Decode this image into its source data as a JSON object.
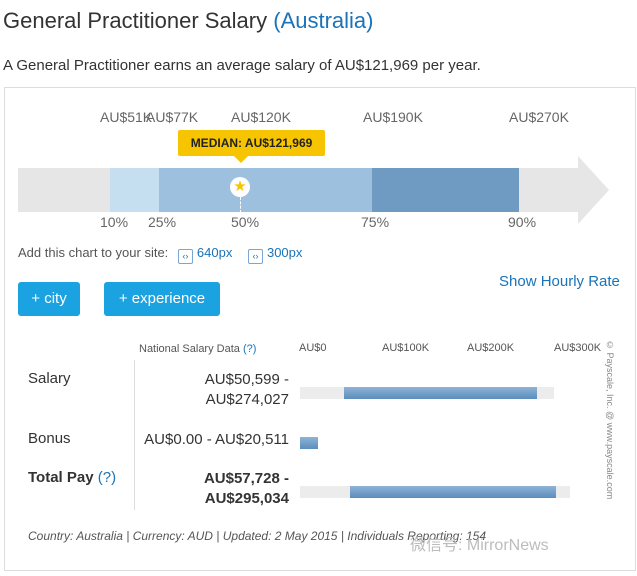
{
  "header": {
    "title": "General Practitioner Salary",
    "country": "(Australia)",
    "summary": "A General Practitioner earns an average salary of AU$121,969 per year."
  },
  "distribution": {
    "top_labels": {
      "p10": "AU$51K",
      "p25": "AU$77K",
      "p50": "AU$120K",
      "p75": "AU$190K",
      "p90": "AU$270K"
    },
    "bottom_labels": {
      "p10": "10%",
      "p25": "25%",
      "p50": "50%",
      "p75": "75%",
      "p90": "90%"
    },
    "median_badge": "MEDIAN: AU$121,969",
    "colors": {
      "track": "#e6e6e6",
      "band_10_25": "#c6dff0",
      "band_25_75": "#9dc0de",
      "band_75_90": "#6f9bc2",
      "median": "#f7c500"
    }
  },
  "embed": {
    "label": "Add this chart to your site:",
    "link_640": "640px",
    "link_300": "300px"
  },
  "filters": {
    "city_button": "+ city",
    "experience_button": "+ experience",
    "hourly_link": "Show Hourly Rate"
  },
  "table": {
    "header": "National Salary Data",
    "help": "(?)",
    "axis": [
      "AU$0",
      "AU$100K",
      "AU$200K",
      "AU$300K"
    ],
    "rows": {
      "salary": {
        "label": "Salary",
        "line1": "AU$50,599 -",
        "line2": "AU$274,027",
        "low": 50599,
        "high": 274027
      },
      "bonus": {
        "label": "Bonus",
        "line1": "AU$0.00 - AU$20,511",
        "low": 0,
        "high": 20511
      },
      "total": {
        "label": "Total Pay",
        "help": "(?)",
        "line1": "AU$57,728 -",
        "line2": "AU$295,034",
        "low": 57728,
        "high": 295034
      }
    }
  },
  "footer": "Country: Australia  |  Currency: AUD  |  Updated: 2 May 2015  |  Individuals Reporting: 154",
  "credit": "© Payscale, Inc. @ www.payscale.com",
  "watermark": "微信号: MirrorNews"
}
